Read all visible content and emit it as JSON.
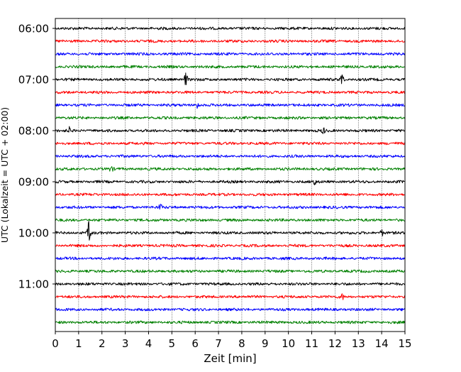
{
  "chart_data": {
    "type": "line",
    "title": "",
    "xlabel": "Zeit  [min]",
    "ylabel": "UTC (Lokalzeit = UTC + 02:00)",
    "xlim": [
      0,
      15
    ],
    "x_ticks": [
      "0",
      "1",
      "2",
      "3",
      "4",
      "5",
      "6",
      "7",
      "8",
      "9",
      "10",
      "11",
      "12",
      "13",
      "14",
      "15"
    ],
    "y_tick_labels": [
      "06:00",
      "07:00",
      "08:00",
      "09:00",
      "10:00",
      "11:00"
    ],
    "grid": "vertical dotted",
    "trace_interval_min": 15,
    "trace_colors": [
      "#000000",
      "#ff0000",
      "#0000ff",
      "#008000"
    ],
    "traces": [
      {
        "start": "06:00",
        "color": "#000000"
      },
      {
        "start": "06:15",
        "color": "#ff0000"
      },
      {
        "start": "06:30",
        "color": "#0000ff"
      },
      {
        "start": "06:45",
        "color": "#008000"
      },
      {
        "start": "07:00",
        "color": "#000000",
        "events": [
          {
            "t": 5.6,
            "amp": 9
          },
          {
            "t": 12.3,
            "amp": 10
          }
        ]
      },
      {
        "start": "07:15",
        "color": "#ff0000"
      },
      {
        "start": "07:30",
        "color": "#0000ff",
        "events": [
          {
            "t": 6.1,
            "amp": 5
          }
        ]
      },
      {
        "start": "07:45",
        "color": "#008000"
      },
      {
        "start": "08:00",
        "color": "#000000",
        "events": [
          {
            "t": 0.6,
            "amp": 4
          },
          {
            "t": 11.5,
            "amp": 4
          }
        ]
      },
      {
        "start": "08:15",
        "color": "#ff0000"
      },
      {
        "start": "08:30",
        "color": "#0000ff"
      },
      {
        "start": "08:45",
        "color": "#008000",
        "events": [
          {
            "t": 2.4,
            "amp": 4
          }
        ]
      },
      {
        "start": "09:00",
        "color": "#000000",
        "events": [
          {
            "t": 11.1,
            "amp": 6
          }
        ]
      },
      {
        "start": "09:15",
        "color": "#ff0000"
      },
      {
        "start": "09:30",
        "color": "#0000ff",
        "events": [
          {
            "t": 4.5,
            "amp": 4
          }
        ]
      },
      {
        "start": "09:45",
        "color": "#008000"
      },
      {
        "start": "10:00",
        "color": "#000000",
        "events": [
          {
            "t": 1.45,
            "amp": 17
          },
          {
            "t": 14.0,
            "amp": 4
          }
        ]
      },
      {
        "start": "10:15",
        "color": "#ff0000"
      },
      {
        "start": "10:30",
        "color": "#0000ff"
      },
      {
        "start": "10:45",
        "color": "#008000"
      },
      {
        "start": "11:00",
        "color": "#000000"
      },
      {
        "start": "11:15",
        "color": "#ff0000",
        "events": [
          {
            "t": 12.3,
            "amp": 4
          }
        ]
      },
      {
        "start": "11:30",
        "color": "#0000ff"
      },
      {
        "start": "11:45",
        "color": "#008000"
      }
    ]
  }
}
